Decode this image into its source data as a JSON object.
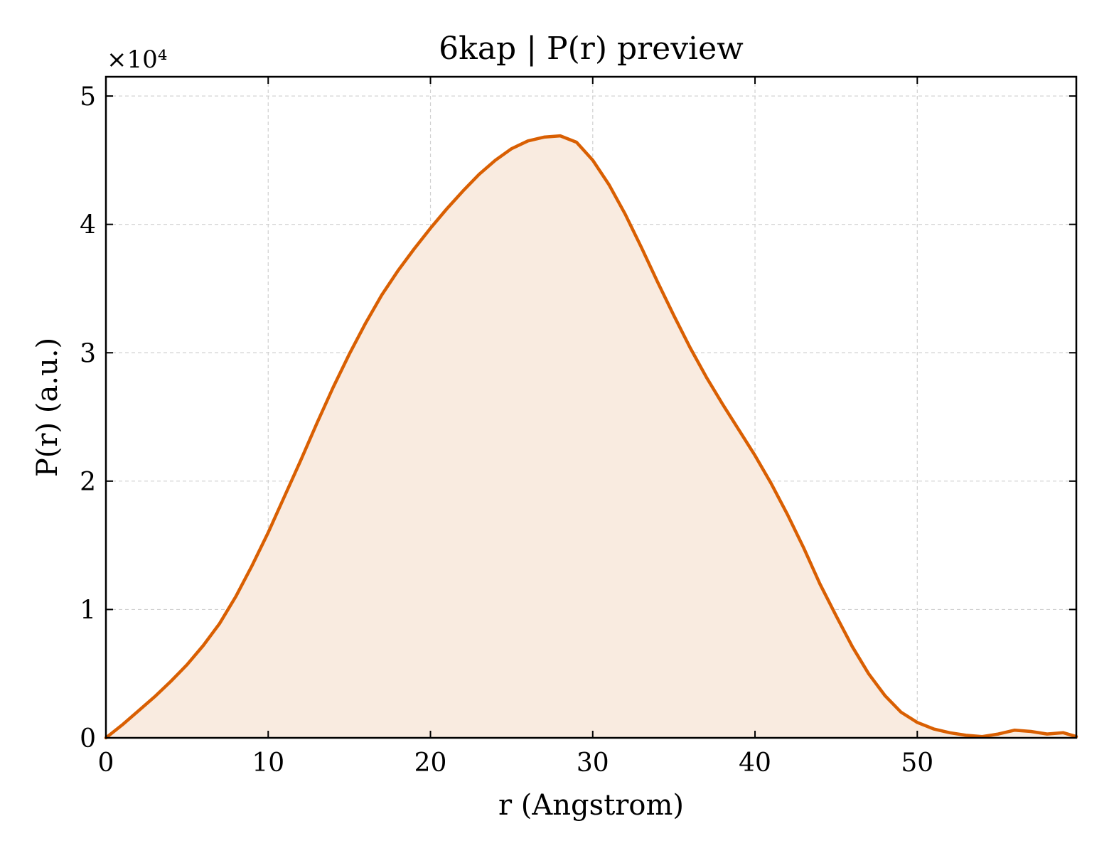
{
  "chart_data": {
    "type": "area",
    "title": "6kap | P(r) preview",
    "xlabel": "r (Angstrom)",
    "ylabel": "P(r) (a.u.)",
    "y_offset_label": "×10⁴",
    "xlim": [
      0,
      59.8
    ],
    "ylim": [
      0,
      51500
    ],
    "xticks": [
      0,
      10,
      20,
      30,
      40,
      50
    ],
    "xtick_labels": [
      "0",
      "10",
      "20",
      "30",
      "40",
      "50"
    ],
    "yticks": [
      0,
      10000,
      20000,
      30000,
      40000,
      50000
    ],
    "ytick_labels": [
      "0",
      "1",
      "2",
      "3",
      "4",
      "5"
    ],
    "grid": true,
    "line_color": "#d95f02",
    "fill_color": "#f9ebe0",
    "series": [
      {
        "x": [
          0,
          1,
          2,
          3,
          4,
          5,
          6,
          7,
          8,
          9,
          10,
          11,
          12,
          13,
          14,
          15,
          16,
          17,
          18,
          19,
          20,
          21,
          22,
          23,
          24,
          25,
          26,
          27,
          28,
          29,
          30,
          31,
          32,
          33,
          34,
          35,
          36,
          37,
          38,
          39,
          40,
          41,
          42,
          43,
          44,
          45,
          46,
          47,
          48,
          49,
          50,
          51,
          52,
          53,
          54,
          55,
          56,
          57,
          58,
          59,
          59.8
        ],
        "y": [
          0,
          1000,
          2100,
          3200,
          4400,
          5700,
          7200,
          8900,
          11000,
          13400,
          16000,
          18800,
          21600,
          24500,
          27300,
          29900,
          32300,
          34500,
          36400,
          38100,
          39700,
          41200,
          42600,
          43900,
          45000,
          45900,
          46500,
          46800,
          46900,
          46400,
          45000,
          43100,
          40800,
          38200,
          35500,
          32900,
          30400,
          28100,
          26000,
          24000,
          22000,
          19800,
          17400,
          14800,
          12000,
          9500,
          7100,
          5000,
          3300,
          2000,
          1200,
          700,
          400,
          200,
          100,
          300,
          600,
          500,
          300,
          400,
          100
        ]
      }
    ]
  }
}
